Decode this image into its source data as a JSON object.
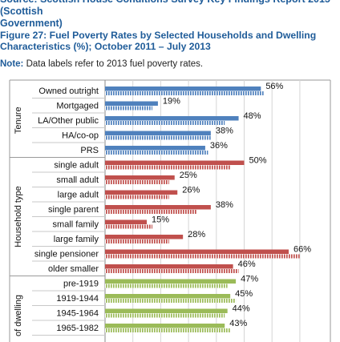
{
  "source": "Source: Scottish House Conditions Survey Key Findings Report 2015 (Scottish\nGovernment)",
  "figure_title": "Figure 27: Fuel Poverty Rates by Selected Households and Dwelling\nCharacteristics (%); October 2011 – July 2013",
  "note": {
    "label": "Note:",
    "text": " Data labels refer to 2013 fuel poverty rates."
  },
  "colors": {
    "tenure": "#4f81bd",
    "household": "#c0504d",
    "dwelling": "#9bbb59"
  },
  "chart_data": {
    "type": "bar",
    "orientation": "horizontal",
    "value_unit": "%",
    "xlim": [
      0,
      70
    ],
    "groups": [
      {
        "name": "Tenure",
        "color_key": "tenure"
      },
      {
        "name": "Household type",
        "color_key": "household"
      },
      {
        "name": "of dwelling",
        "color_key": "dwelling"
      }
    ],
    "categories": [
      {
        "label": "Owned outright",
        "group": 0,
        "v2013": 56,
        "v2012": 57
      },
      {
        "label": "Mortgaged",
        "group": 0,
        "v2013": 19,
        "v2012": 17
      },
      {
        "label": "LA/Other public",
        "group": 0,
        "v2013": 48,
        "v2012": 43
      },
      {
        "label": "HA/co-op",
        "group": 0,
        "v2013": 38,
        "v2012": 38
      },
      {
        "label": "PRS",
        "group": 0,
        "v2013": 36,
        "v2012": 37
      },
      {
        "label": "single adult",
        "group": 1,
        "v2013": 50,
        "v2012": 45
      },
      {
        "label": "small adult",
        "group": 1,
        "v2013": 25,
        "v2012": 23
      },
      {
        "label": "large adult",
        "group": 1,
        "v2013": 26,
        "v2012": 23
      },
      {
        "label": "single parent",
        "group": 1,
        "v2013": 38,
        "v2012": 33
      },
      {
        "label": "small family",
        "group": 1,
        "v2013": 15,
        "v2012": 17
      },
      {
        "label": "large family",
        "group": 1,
        "v2013": 28,
        "v2012": 23
      },
      {
        "label": "single pensioner",
        "group": 1,
        "v2013": 66,
        "v2012": 70
      },
      {
        "label": "older smaller",
        "group": 1,
        "v2013": 46,
        "v2012": 48
      },
      {
        "label": "pre-1919",
        "group": 2,
        "v2013": 47,
        "v2012": 44
      },
      {
        "label": "1919-1944",
        "group": 2,
        "v2013": 45,
        "v2012": 47
      },
      {
        "label": "1945-1964",
        "group": 2,
        "v2013": 44,
        "v2012": 43
      },
      {
        "label": "1965-1982",
        "group": 2,
        "v2013": 43,
        "v2012": 45
      }
    ]
  }
}
